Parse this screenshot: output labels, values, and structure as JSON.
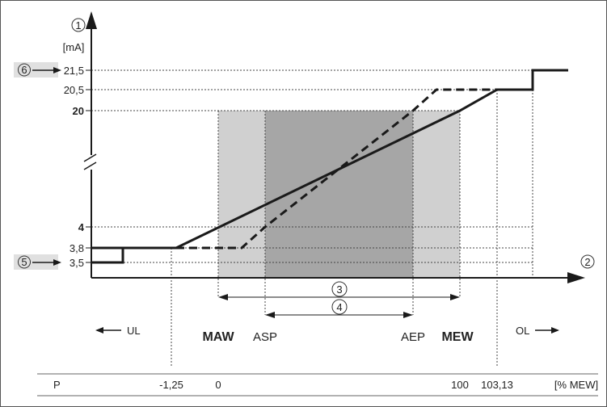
{
  "y_axis": {
    "marker": "1",
    "unit": "[mA]",
    "ticks": [
      "21,5",
      "20,5",
      "20",
      "4",
      "3,8",
      "3,5"
    ]
  },
  "x_axis": {
    "marker": "2"
  },
  "callouts": {
    "c3": "3",
    "c4": "4",
    "c5": "5",
    "c6": "6"
  },
  "region_labels": {
    "ul": "UL",
    "maw": "MAW",
    "asp": "ASP",
    "aep": "AEP",
    "mew": "MEW",
    "ol": "OL"
  },
  "table": {
    "row_label": "P",
    "values": [
      "-1,25",
      "0",
      "100",
      "103,13"
    ],
    "unit": "[% MEW]"
  },
  "colors": {
    "light_zone": "#d0d0d0",
    "dark_zone": "#a6a6a6",
    "callout_bg": "#e0e0e0",
    "line": "#1a1a1a"
  }
}
